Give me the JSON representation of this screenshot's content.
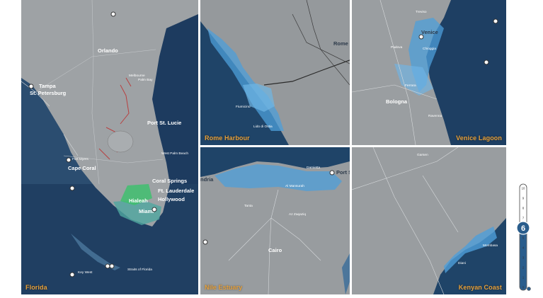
{
  "panels": [
    {
      "id": "florida",
      "caption": "Florida"
    },
    {
      "id": "rome",
      "caption": "Rome Harbour"
    },
    {
      "id": "venice",
      "caption": "Venice Lagoon"
    },
    {
      "id": "nile",
      "caption": "Nile Estuary"
    },
    {
      "id": "kenya",
      "caption": "Kenyan Coast"
    }
  ],
  "florida_labels": {
    "orlando": "Orlando",
    "tampa": "Tampa",
    "st_petersburg": "St. Petersburg",
    "port_st_lucie": "Port St. Lucie",
    "cape_coral": "Cape Coral",
    "coral_springs": "Coral Springs",
    "fort_lauderdale": "Ft. Lauderdale",
    "hollywood": "Hollywood",
    "hialeah": "Hialeah",
    "miami": "Miami",
    "west_palm_beach": "West Palm Beach",
    "melbourne": "Melbourne",
    "palm_bay": "Palm Bay",
    "fort_myers": "Fort Myers",
    "key_west": "Key West",
    "straits": "Straits of Florida"
  },
  "rome_labels": {
    "rome": "Rome",
    "fiumicino": "Fiumicino",
    "ostia": "Lido di Ostia"
  },
  "venice_labels": {
    "venice": "Venice",
    "bologna": "Bologna",
    "chioggia": "Chioggia",
    "padova": "Padova",
    "ferrara": "Ferrara",
    "treviso": "Treviso",
    "ravenna": "Ravenna"
  },
  "nile_labels": {
    "port_said": "Port S",
    "alexandria": "ndria",
    "cairo": "Cairo",
    "tanta": "Tanta",
    "mansoura": "Al Mansurah",
    "damietta": "Damietta",
    "zagazig": "Az Zaqaziq"
  },
  "kenya_labels": {
    "mombasa": "Mombasa",
    "diani": "Diani",
    "garissa": "Garsen"
  },
  "slider": {
    "value": 6,
    "min": 0,
    "max": 10,
    "ticks": [
      "10",
      "9",
      "8",
      "7",
      "6",
      "5",
      "4",
      "3",
      "2",
      "1",
      "0"
    ]
  },
  "colors": {
    "ocean": "#1f3f63",
    "land": "#8f9396",
    "flood": "#4d9fd9",
    "caption": "#e8a13a",
    "slider_fill": "#2a5d8c"
  }
}
